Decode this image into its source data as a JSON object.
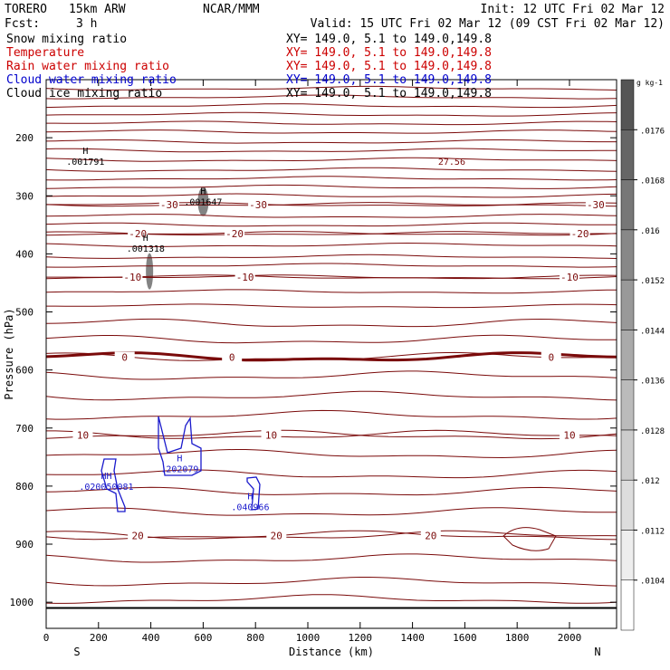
{
  "header": {
    "model": "TORERO",
    "resolution": "15km ARW",
    "org": "NCAR/MMM",
    "init": "Init: 12 UTC Fri 02 Mar 12",
    "fcst_label": "Fcst:",
    "fcst_value": "3 h",
    "valid": "Valid: 15 UTC Fri 02 Mar 12 (09 CST Fri 02 Mar 12)"
  },
  "fields": [
    {
      "name": "Snow mixing ratio",
      "xy": "XY= 149.0,  5.1 to 149.0,149.8",
      "color": "#000000"
    },
    {
      "name": "Temperature",
      "xy": "XY= 149.0,  5.1 to 149.0,149.8",
      "color": "#cc0000"
    },
    {
      "name": "Rain water mixing ratio",
      "xy": "XY= 149.0,  5.1 to 149.0,149.8",
      "color": "#cc0000"
    },
    {
      "name": "Cloud water mixing ratio",
      "xy": "XY= 149.0,  5.1 to 149.0,149.8",
      "color": "#0000cc"
    },
    {
      "name": "Cloud ice mixing ratio",
      "xy": "XY= 149.0,  5.1 to 149.0,149.8",
      "color": "#000000"
    }
  ],
  "colors": {
    "temperature": "#7a0a0a",
    "cloud_water": "#1a1acc",
    "snow_shade": "#5a5a5a",
    "axis": "#000000"
  },
  "chart_data": {
    "type": "contour",
    "xlabel": "Distance (km)",
    "ylabel": "Pressure (hPa)",
    "xlim": [
      0,
      2180
    ],
    "ylim": [
      1045,
      100
    ],
    "x_ticks": [
      0,
      200,
      400,
      600,
      800,
      1000,
      1200,
      1400,
      1600,
      1800,
      2000
    ],
    "y_ticks": [
      200,
      300,
      400,
      500,
      600,
      700,
      800,
      900,
      1000
    ],
    "x_end_labels": {
      "left": "S",
      "right": "N"
    },
    "ground_pressure": 1010,
    "temperature_isotherms": [
      {
        "value": -30,
        "pressure": 315,
        "labels": [
          {
            "x": 470
          },
          {
            "x": 810
          },
          {
            "x": 2100
          }
        ]
      },
      {
        "value": -20,
        "pressure": 365,
        "labels": [
          {
            "x": 350
          },
          {
            "x": 720
          },
          {
            "x": 2040
          }
        ]
      },
      {
        "value": -10,
        "pressure": 440,
        "labels": [
          {
            "x": 330
          },
          {
            "x": 760
          },
          {
            "x": 2000
          }
        ]
      },
      {
        "value": 0,
        "pressure": 578,
        "labels": [
          {
            "x": 300
          },
          {
            "x": 710
          },
          {
            "x": 1930
          }
        ],
        "bold": true
      },
      {
        "value": 10,
        "pressure": 712,
        "labels": [
          {
            "x": 140
          },
          {
            "x": 860
          },
          {
            "x": 2000
          }
        ]
      },
      {
        "value": 20,
        "pressure": 885,
        "labels": [
          {
            "x": 350
          },
          {
            "x": 880
          },
          {
            "x": 1470
          }
        ]
      }
    ],
    "snow_colorbar": {
      "unit": "g kg-1",
      "ticks": [
        ".0104",
        ".0112",
        ".012",
        ".0128",
        ".0136",
        ".0144",
        ".0152",
        ".016",
        ".0168",
        ".0176"
      ]
    },
    "maxima": [
      {
        "field": "snow",
        "marker": "H",
        "label": ".001791",
        "x": 150,
        "p": 240
      },
      {
        "field": "snow",
        "marker": "H",
        "label": ".001647",
        "x": 600,
        "p": 310
      },
      {
        "field": "snow",
        "marker": "H",
        "label": ".001318",
        "x": 380,
        "p": 390
      },
      {
        "field": "cloud_water",
        "marker": "HH",
        "label": ".020050081",
        "x": 230,
        "p": 800
      },
      {
        "field": "cloud_water",
        "marker": "H",
        "label": ".202079",
        "x": 510,
        "p": 770
      },
      {
        "field": "cloud_water",
        "marker": "H",
        "label": ".040966",
        "x": 780,
        "p": 835
      },
      {
        "field": "rain",
        "marker": "",
        "label": "27.56",
        "x": 1550,
        "p": 240
      }
    ]
  }
}
